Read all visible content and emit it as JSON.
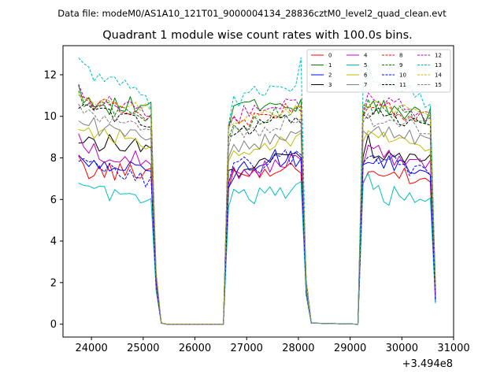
{
  "chart_data": {
    "type": "line",
    "suptitle": "Data file: modeM0/AS1A10_121T01_9000004134_28836cztM0_level2_quad_clean.evt",
    "title": "Quadrant 1 module wise count rates with 100.0s bins.",
    "xlabel": "",
    "ylabel": "",
    "x_offset_label": "+3.494e8",
    "xlim": [
      23450,
      31000
    ],
    "ylim": [
      -0.62,
      13.4
    ],
    "xticks": [
      24000,
      25000,
      26000,
      27000,
      28000,
      29000,
      30000,
      31000
    ],
    "yticks": [
      0,
      2,
      4,
      6,
      8,
      10,
      12
    ],
    "grid": false,
    "legend_position": "top-right",
    "x": [
      23750,
      23850,
      23950,
      24050,
      24150,
      24250,
      24350,
      24450,
      24550,
      24650,
      24750,
      24850,
      24950,
      25050,
      25150,
      25250,
      25350,
      25450,
      25550,
      26550,
      26650,
      26750,
      26850,
      26950,
      27050,
      27150,
      27250,
      27350,
      27450,
      27550,
      27650,
      27750,
      27850,
      27950,
      28050,
      28150,
      28250,
      29150,
      29250,
      29350,
      29450,
      29550,
      29650,
      29750,
      29850,
      29950,
      30050,
      30150,
      30250,
      30350,
      30450,
      30550,
      30650
    ],
    "series": [
      {
        "name": "0",
        "color": "#ff0000",
        "dash": false,
        "base": [
          7.8,
          7.5,
          7.3,
          7.2,
          7.4,
          7.3,
          7.5,
          7.2,
          7.4,
          7.3,
          7.5,
          7.4,
          7.2,
          7.3,
          7.5,
          2.0,
          0.05,
          0.0,
          0.0,
          0.0,
          6.8,
          7.2,
          7.0,
          7.3,
          7.1,
          7.5,
          7.2,
          7.4,
          7.1,
          7.3,
          7.5,
          7.2,
          7.6,
          7.4,
          7.3,
          1.5,
          0.05,
          0.0,
          7.0,
          7.3,
          7.2,
          7.4,
          7.1,
          7.5,
          7.3,
          7.2,
          7.4,
          7.1,
          7.0,
          7.3,
          7.2,
          6.8,
          1.2
        ]
      },
      {
        "name": "1",
        "color": "#008000",
        "dash": false,
        "base": [
          11.8,
          10.6,
          11.0,
          10.6,
          10.5,
          10.8,
          10.4,
          10.6,
          10.5,
          10.3,
          10.6,
          10.4,
          10.5,
          10.2,
          10.4,
          2.3,
          0.05,
          0.0,
          0.0,
          0.0,
          9.6,
          10.3,
          10.7,
          10.5,
          10.4,
          10.8,
          10.2,
          10.6,
          10.4,
          10.5,
          10.9,
          10.3,
          10.6,
          10.4,
          10.7,
          1.8,
          0.05,
          0.0,
          10.5,
          10.6,
          10.4,
          10.2,
          10.5,
          10.3,
          10.6,
          10.4,
          10.1,
          10.3,
          10.2,
          10.0,
          9.8,
          10.1,
          1.5
        ]
      },
      {
        "name": "2",
        "color": "#0000ff",
        "dash": false,
        "base": [
          8.1,
          7.9,
          7.7,
          7.6,
          7.8,
          7.6,
          7.7,
          7.5,
          7.6,
          7.4,
          7.6,
          7.5,
          7.3,
          7.4,
          7.2,
          1.9,
          0.05,
          0.0,
          0.0,
          0.0,
          6.9,
          7.3,
          7.6,
          7.5,
          7.7,
          7.6,
          7.8,
          7.5,
          7.9,
          8.1,
          7.8,
          7.6,
          8.0,
          7.8,
          7.9,
          1.6,
          0.05,
          0.0,
          7.6,
          8.0,
          7.7,
          7.9,
          7.6,
          7.8,
          7.5,
          7.7,
          7.6,
          7.4,
          7.6,
          7.5,
          7.3,
          7.2,
          1.3
        ]
      },
      {
        "name": "3",
        "color": "#000000",
        "dash": false,
        "base": [
          8.8,
          8.9,
          8.7,
          8.8,
          8.6,
          8.7,
          8.9,
          8.5,
          8.7,
          8.6,
          8.8,
          8.7,
          8.5,
          8.7,
          8.4,
          2.0,
          0.05,
          0.0,
          0.0,
          0.0,
          7.2,
          7.5,
          7.4,
          7.6,
          7.5,
          7.7,
          7.6,
          7.9,
          7.8,
          8.0,
          8.2,
          8.1,
          8.0,
          8.3,
          8.2,
          1.7,
          0.05,
          0.0,
          8.0,
          8.8,
          8.2,
          8.4,
          8.1,
          8.3,
          8.0,
          8.2,
          7.9,
          8.1,
          8.0,
          7.8,
          7.7,
          7.9,
          1.4
        ]
      },
      {
        "name": "4",
        "color": "#c000c0",
        "dash": false,
        "base": [
          9.2,
          8.3,
          8.2,
          8.4,
          8.1,
          8.0,
          8.2,
          7.9,
          8.1,
          8.0,
          7.9,
          8.0,
          7.8,
          7.9,
          7.7,
          1.9,
          0.05,
          0.0,
          0.0,
          0.0,
          7.1,
          7.5,
          7.3,
          7.5,
          7.4,
          7.6,
          7.4,
          7.7,
          7.5,
          7.7,
          7.9,
          7.6,
          8.0,
          7.8,
          8.1,
          1.6,
          0.05,
          0.0,
          7.8,
          8.4,
          8.1,
          8.3,
          8.0,
          8.2,
          7.9,
          8.1,
          7.8,
          8.0,
          7.7,
          7.9,
          7.6,
          7.8,
          1.3
        ]
      },
      {
        "name": "5",
        "color": "#00bfbf",
        "dash": false,
        "base": [
          6.7,
          6.5,
          6.6,
          6.4,
          6.3,
          6.5,
          6.1,
          6.3,
          6.2,
          6.4,
          6.1,
          6.2,
          6.0,
          6.1,
          6.0,
          1.5,
          0.05,
          0.0,
          0.0,
          0.0,
          5.9,
          6.2,
          6.3,
          6.2,
          6.3,
          6.1,
          6.4,
          6.2,
          6.5,
          6.3,
          6.6,
          6.4,
          6.5,
          6.6,
          6.7,
          1.3,
          0.05,
          0.0,
          6.5,
          7.0,
          6.6,
          6.5,
          6.2,
          6.0,
          6.4,
          6.1,
          5.9,
          6.2,
          6.0,
          5.8,
          6.1,
          6.0,
          1.0
        ]
      },
      {
        "name": "6",
        "color": "#bfbf00",
        "dash": false,
        "base": [
          9.6,
          9.3,
          9.4,
          9.2,
          9.3,
          9.1,
          9.2,
          9.0,
          9.1,
          8.9,
          9.0,
          8.8,
          8.9,
          8.7,
          8.8,
          2.1,
          0.05,
          0.0,
          0.0,
          0.0,
          7.9,
          8.4,
          8.3,
          8.5,
          8.4,
          8.6,
          8.5,
          8.7,
          8.6,
          8.8,
          8.7,
          8.9,
          8.8,
          9.0,
          8.9,
          1.8,
          0.05,
          0.0,
          8.8,
          9.2,
          9.0,
          9.1,
          8.9,
          9.0,
          8.8,
          8.9,
          8.7,
          8.8,
          8.6,
          8.7,
          8.5,
          8.6,
          1.5
        ]
      },
      {
        "name": "7",
        "color": "#808080",
        "dash": false,
        "base": [
          9.9,
          9.6,
          9.5,
          9.7,
          9.4,
          9.3,
          9.5,
          9.2,
          9.3,
          9.1,
          9.2,
          9.0,
          9.1,
          8.9,
          9.0,
          2.1,
          0.05,
          0.0,
          0.0,
          0.0,
          8.2,
          8.6,
          8.5,
          8.7,
          8.6,
          8.8,
          8.7,
          8.9,
          8.8,
          9.0,
          8.9,
          9.1,
          9.0,
          9.2,
          9.1,
          1.8,
          0.05,
          0.0,
          9.0,
          9.4,
          9.2,
          9.3,
          9.1,
          9.2,
          9.0,
          9.1,
          8.9,
          9.0,
          8.8,
          8.9,
          8.7,
          8.8,
          1.5
        ]
      },
      {
        "name": "8",
        "color": "#ff0000",
        "dash": true,
        "base": [
          11.0,
          10.9,
          10.8,
          10.6,
          10.7,
          10.5,
          10.6,
          10.4,
          10.5,
          10.3,
          10.4,
          10.2,
          10.3,
          10.1,
          10.2,
          2.3,
          0.05,
          0.0,
          0.0,
          0.0,
          9.3,
          9.8,
          9.7,
          9.9,
          9.8,
          10.0,
          9.9,
          10.1,
          10.0,
          10.2,
          10.1,
          10.3,
          10.2,
          10.4,
          10.3,
          1.9,
          0.05,
          0.0,
          10.2,
          10.6,
          10.4,
          10.5,
          10.3,
          10.4,
          10.2,
          10.3,
          10.1,
          10.2,
          10.0,
          10.1,
          9.9,
          10.0,
          1.6
        ]
      },
      {
        "name": "9",
        "color": "#008000",
        "dash": true,
        "base": [
          10.9,
          10.8,
          10.7,
          10.5,
          10.6,
          10.4,
          10.5,
          10.3,
          10.4,
          10.2,
          10.3,
          10.1,
          10.2,
          10.0,
          10.1,
          2.3,
          0.05,
          0.0,
          0.0,
          0.0,
          9.2,
          9.7,
          9.6,
          9.8,
          9.7,
          9.9,
          9.8,
          10.0,
          9.9,
          10.1,
          10.0,
          10.2,
          10.1,
          10.3,
          10.2,
          1.9,
          0.05,
          0.0,
          10.1,
          10.5,
          10.3,
          10.4,
          10.2,
          10.3,
          10.1,
          10.2,
          10.0,
          10.1,
          9.9,
          10.0,
          9.8,
          9.9,
          1.6
        ]
      },
      {
        "name": "10",
        "color": "#0000ff",
        "dash": true,
        "base": [
          7.6,
          7.9,
          7.5,
          7.7,
          7.4,
          7.3,
          7.5,
          7.2,
          7.3,
          7.1,
          7.2,
          7.0,
          7.1,
          6.9,
          6.8,
          1.8,
          0.05,
          0.0,
          0.0,
          0.0,
          6.9,
          7.7,
          7.6,
          7.8,
          7.5,
          7.7,
          7.6,
          7.9,
          7.8,
          8.0,
          7.9,
          8.1,
          8.0,
          8.2,
          8.1,
          1.6,
          0.05,
          0.0,
          7.8,
          8.1,
          7.9,
          8.0,
          7.8,
          7.6,
          7.9,
          7.5,
          7.7,
          7.4,
          7.6,
          7.3,
          7.5,
          7.4,
          1.3
        ]
      },
      {
        "name": "11",
        "color": "#000000",
        "dash": true,
        "base": [
          10.6,
          10.5,
          10.3,
          10.2,
          10.3,
          10.1,
          10.2,
          10.0,
          10.1,
          9.9,
          10.0,
          9.8,
          9.9,
          9.7,
          9.8,
          2.2,
          0.05,
          0.0,
          0.0,
          0.0,
          8.9,
          9.4,
          9.3,
          9.5,
          9.4,
          9.6,
          9.5,
          9.7,
          9.6,
          9.8,
          9.7,
          9.9,
          9.8,
          10.0,
          9.9,
          1.9,
          0.05,
          0.0,
          9.8,
          10.2,
          10.0,
          10.1,
          9.9,
          10.0,
          9.8,
          9.9,
          9.7,
          9.8,
          9.6,
          9.7,
          9.5,
          9.6,
          1.6
        ]
      },
      {
        "name": "12",
        "color": "#c000c0",
        "dash": true,
        "base": [
          11.2,
          11.0,
          10.9,
          10.7,
          10.8,
          10.6,
          10.7,
          10.5,
          10.6,
          10.4,
          10.5,
          10.3,
          10.4,
          10.2,
          10.3,
          2.3,
          0.05,
          0.0,
          0.0,
          0.0,
          9.6,
          10.1,
          10.0,
          10.2,
          10.1,
          10.3,
          10.2,
          10.4,
          10.3,
          10.5,
          10.4,
          10.6,
          10.5,
          10.7,
          10.6,
          1.9,
          0.05,
          0.0,
          10.4,
          10.8,
          10.6,
          10.7,
          10.5,
          10.6,
          10.4,
          10.5,
          10.3,
          10.4,
          10.2,
          10.3,
          10.1,
          10.2,
          1.6
        ]
      },
      {
        "name": "13",
        "color": "#00bfbf",
        "dash": true,
        "base": [
          12.6,
          12.3,
          12.2,
          12.0,
          12.1,
          11.8,
          11.9,
          11.6,
          11.7,
          11.4,
          11.5,
          11.2,
          11.3,
          10.9,
          10.6,
          2.4,
          0.05,
          0.0,
          0.0,
          0.0,
          9.8,
          10.9,
          10.8,
          11.0,
          10.9,
          11.2,
          11.1,
          11.3,
          11.2,
          11.5,
          11.4,
          11.6,
          11.5,
          11.7,
          12.8,
          2.0,
          0.05,
          0.0,
          11.6,
          12.2,
          11.7,
          11.8,
          11.5,
          11.6,
          11.3,
          11.4,
          11.1,
          11.2,
          10.9,
          11.0,
          10.7,
          10.8,
          1.7
        ]
      },
      {
        "name": "14",
        "color": "#bfbf00",
        "dash": true,
        "base": [
          11.1,
          10.9,
          10.7,
          10.8,
          10.6,
          10.7,
          10.5,
          10.6,
          10.4,
          10.5,
          10.3,
          10.4,
          10.2,
          10.3,
          10.1,
          2.3,
          0.05,
          0.0,
          0.0,
          0.0,
          9.4,
          9.9,
          9.8,
          10.0,
          9.9,
          10.1,
          10.0,
          10.2,
          10.1,
          10.3,
          10.2,
          10.4,
          10.3,
          10.5,
          10.4,
          1.9,
          0.05,
          0.0,
          10.3,
          10.7,
          10.5,
          10.6,
          10.4,
          10.5,
          10.3,
          10.4,
          10.2,
          10.3,
          10.1,
          10.2,
          10.0,
          10.1,
          1.6
        ]
      },
      {
        "name": "15",
        "color": "#808080",
        "dash": true,
        "base": [
          10.3,
          10.2,
          10.0,
          10.1,
          9.9,
          10.0,
          9.8,
          9.9,
          9.7,
          9.8,
          9.6,
          9.7,
          9.5,
          9.6,
          9.4,
          2.2,
          0.05,
          0.0,
          0.0,
          0.0,
          8.7,
          9.2,
          9.1,
          9.3,
          9.2,
          9.4,
          9.3,
          9.5,
          9.4,
          9.6,
          9.5,
          9.7,
          9.6,
          9.8,
          9.7,
          1.8,
          0.05,
          0.0,
          9.6,
          10.0,
          9.8,
          9.9,
          9.7,
          9.8,
          9.6,
          9.7,
          9.5,
          9.6,
          9.4,
          9.5,
          9.3,
          9.4,
          1.5
        ]
      }
    ]
  }
}
